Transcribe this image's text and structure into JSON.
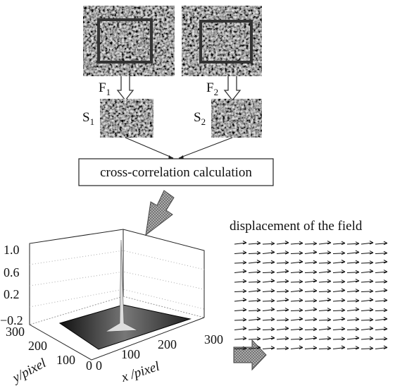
{
  "frames": [
    {
      "label": {
        "main": "F",
        "sub": "1"
      }
    },
    {
      "label": {
        "main": "F",
        "sub": "2"
      }
    }
  ],
  "subwindows": [
    {
      "label": {
        "main": "S",
        "sub": "1"
      }
    },
    {
      "label": {
        "main": "S",
        "sub": "2"
      }
    }
  ],
  "process": {
    "label": "cross-correlation calculation"
  },
  "plot": {
    "z_ticks": [
      "1.0",
      "0.6",
      "0.2",
      "−0.2"
    ],
    "y_ticks": [
      "300",
      "200",
      "100",
      "0"
    ],
    "x_ticks": [
      "0",
      "100",
      "200",
      "300"
    ],
    "y_label": "y/pixel",
    "x_label": "x /pixel"
  },
  "field": {
    "title": "displacement of the field"
  }
}
